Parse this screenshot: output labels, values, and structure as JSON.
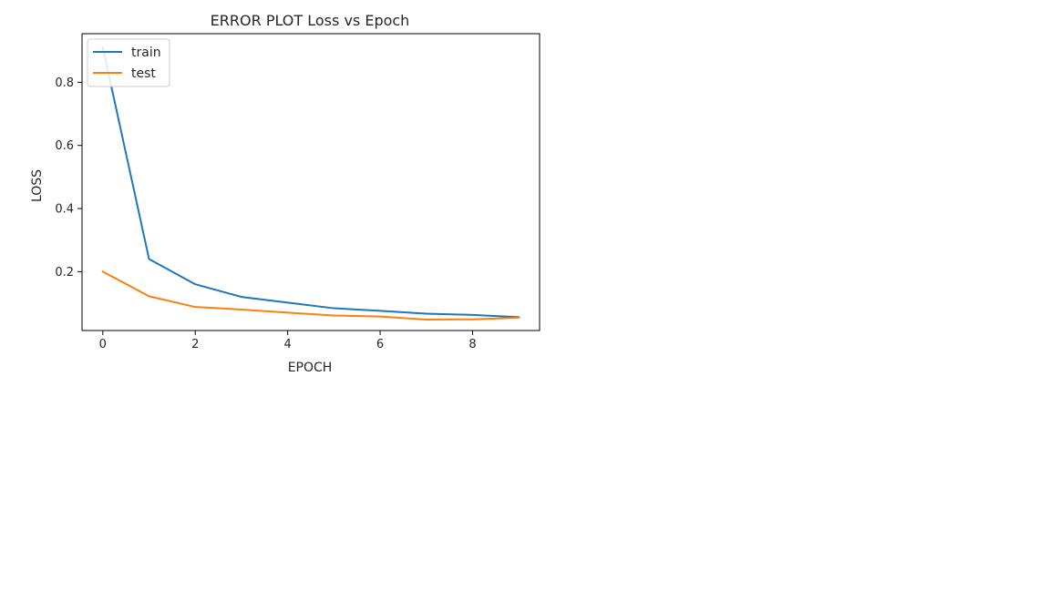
{
  "chart_data": {
    "type": "line",
    "title": "ERROR PLOT Loss vs Epoch",
    "xlabel": "EPOCH",
    "ylabel": "LOSS",
    "x": [
      0,
      1,
      2,
      3,
      4,
      5,
      6,
      7,
      8,
      9
    ],
    "series": [
      {
        "name": "train",
        "color": "#1f77b4",
        "values": [
          0.91,
          0.24,
          0.16,
          0.12,
          0.102,
          0.084,
          0.076,
          0.067,
          0.063,
          0.056
        ]
      },
      {
        "name": "test",
        "color": "#ff7f0e",
        "values": [
          0.2,
          0.122,
          0.088,
          0.08,
          0.07,
          0.061,
          0.058,
          0.048,
          0.049,
          0.054
        ]
      }
    ],
    "xlim": [
      -0.45,
      9.45
    ],
    "ylim": [
      0.0135,
      0.954
    ],
    "xticks": [
      0,
      2,
      4,
      6,
      8
    ],
    "xtick_labels": [
      "0",
      "2",
      "4",
      "6",
      "8"
    ],
    "yticks": [
      0.2,
      0.4,
      0.6,
      0.8
    ],
    "ytick_labels": [
      "0.2",
      "0.4",
      "0.6",
      "0.8"
    ],
    "grid": false,
    "legend_position": "top-left"
  }
}
